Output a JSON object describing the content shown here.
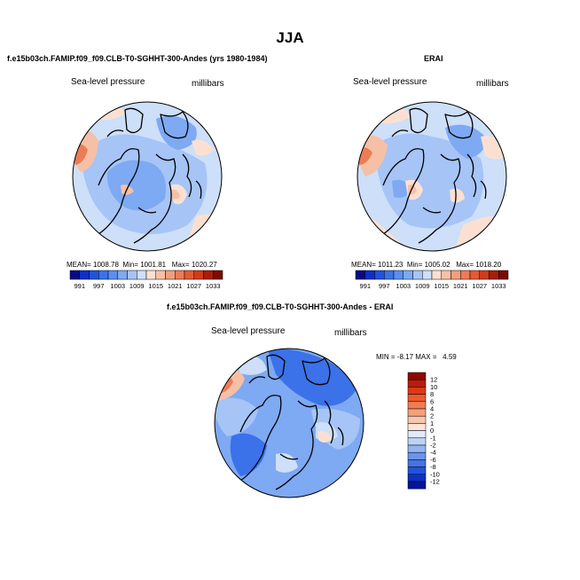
{
  "title": "JJA",
  "panels": [
    {
      "title": "f.e15b03ch.FAMIP.f09_f09.CLB-T0-SGHHT-300-Andes (yrs 1980-1984)",
      "variable": "Sea-level pressure",
      "units": "millibars",
      "stats": {
        "mean_label": "MEAN=",
        "mean": "1008.78",
        "min_label": "Min=",
        "min": "1001.81",
        "max_label": "Max=",
        "max": "1020.27"
      }
    },
    {
      "title": "ERAI",
      "variable": "Sea-level pressure",
      "units": "millibars",
      "stats": {
        "mean_label": "MEAN=",
        "mean": "1011.23",
        "min_label": "Min=",
        "min": "1005.02",
        "max_label": "Max=",
        "max": "1018.20"
      }
    },
    {
      "title": "f.e15b03ch.FAMIP.f09_f09.CLB-T0-SGHHT-300-Andes - ERAI",
      "variable": "Sea-level pressure",
      "units": "millibars",
      "stats": {
        "min_label": "MIN =",
        "min": "-8.17",
        "max_label": "MAX =",
        "max": "4.59"
      }
    }
  ],
  "colorbar_abs": {
    "labels": [
      "991",
      "997",
      "1003",
      "1009",
      "1015",
      "1021",
      "1027",
      "1033"
    ],
    "colors": [
      "#08088a",
      "#0b2fc8",
      "#1f52e0",
      "#3b72ea",
      "#5a8ef0",
      "#7ea9f3",
      "#a6c4f6",
      "#cddff9",
      "#fbe0d2",
      "#f6c0a6",
      "#f19e7b",
      "#ec7c55",
      "#e35a33",
      "#d03b1a",
      "#a81e08",
      "#7a0a02"
    ]
  },
  "colorbar_diff": {
    "labels": [
      "12",
      "10",
      "8",
      "6",
      "4",
      "2",
      "1",
      "0",
      "-1",
      "-2",
      "-4",
      "-6",
      "-8",
      "-10",
      "-12"
    ],
    "colors": [
      "#8c0a04",
      "#b81c0a",
      "#d93a18",
      "#ec5a2e",
      "#f27c52",
      "#f5a07c",
      "#f9c6ac",
      "#fde5d8",
      "#dfeafb",
      "#bcd3f7",
      "#93b6f1",
      "#6a95eb",
      "#4574e3",
      "#2552d8",
      "#0b30c4",
      "#04149a"
    ]
  },
  "map_colors": {
    "land_outline": "#000000",
    "neutral_light_blue": "#cddff9",
    "mid_blue": "#a6c4f6",
    "blue": "#7ea9f3",
    "strong_blue": "#3b72ea",
    "salmon": "#f6c0a6",
    "peach": "#fbe0d2",
    "red": "#ec7c55"
  }
}
